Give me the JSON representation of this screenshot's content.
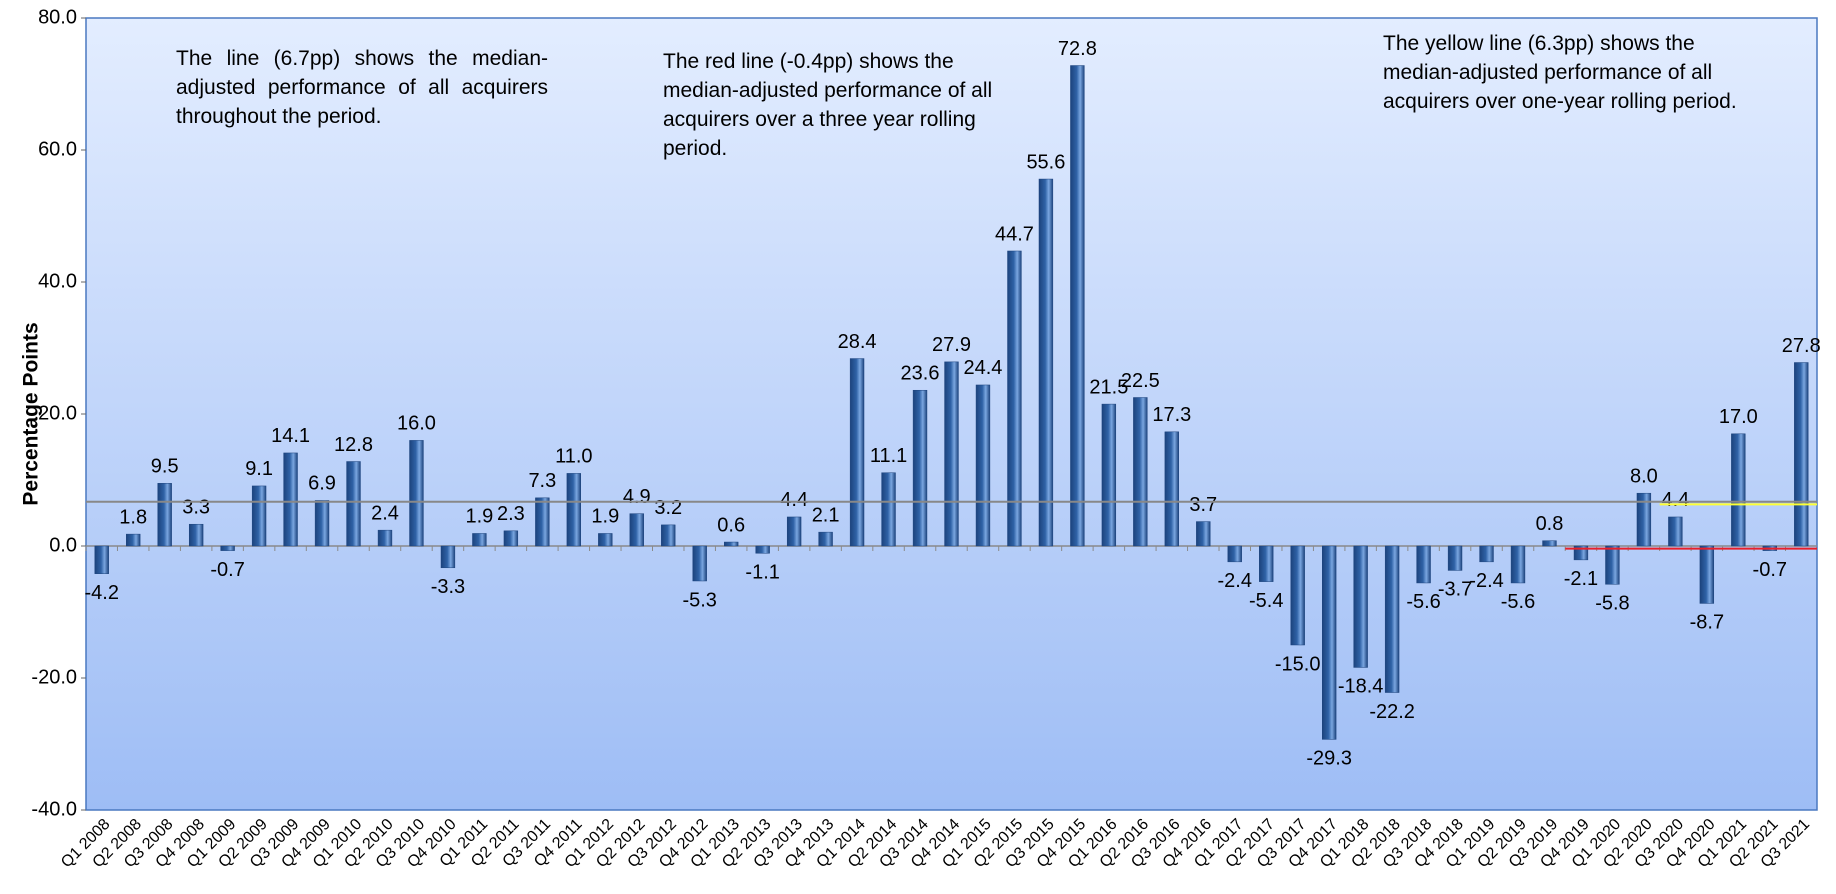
{
  "chart_data": {
    "type": "bar",
    "y_label": "Percentage Points",
    "categories": [
      "Q1 2008",
      "Q2 2008",
      "Q3 2008",
      "Q4 2008",
      "Q1 2009",
      "Q2 2009",
      "Q3 2009",
      "Q4 2009",
      "Q1 2010",
      "Q2 2010",
      "Q3 2010",
      "Q4 2010",
      "Q1 2011",
      "Q2 2011",
      "Q3 2011",
      "Q4 2011",
      "Q1 2012",
      "Q2 2012",
      "Q3 2012",
      "Q4 2012",
      "Q1 2013",
      "Q2 2013",
      "Q3 2013",
      "Q4 2013",
      "Q1 2014",
      "Q2 2014",
      "Q3 2014",
      "Q4 2014",
      "Q1 2015",
      "Q2 2015",
      "Q3 2015",
      "Q4 2015",
      "Q1 2016",
      "Q2 2016",
      "Q3 2016",
      "Q4 2016",
      "Q1 2017",
      "Q2 2017",
      "Q3 2017",
      "Q4 2017",
      "Q1 2018",
      "Q2 2018",
      "Q3 2018",
      "Q4 2018",
      "Q1 2019",
      "Q2 2019",
      "Q3 2019",
      "Q4 2019",
      "Q1 2020",
      "Q2 2020",
      "Q3 2020",
      "Q4 2020",
      "Q1 2021",
      "Q2 2021",
      "Q3 2021"
    ],
    "values": [
      -4.2,
      1.8,
      9.5,
      3.3,
      -0.7,
      9.1,
      14.1,
      6.9,
      12.8,
      2.4,
      16.0,
      -3.3,
      1.9,
      2.3,
      7.3,
      11.0,
      1.9,
      4.9,
      3.2,
      -5.3,
      0.6,
      -1.1,
      4.4,
      2.1,
      28.4,
      11.1,
      23.6,
      27.9,
      24.4,
      44.7,
      55.6,
      72.8,
      21.5,
      22.5,
      17.3,
      3.7,
      -2.4,
      -5.4,
      -15.0,
      -29.3,
      -18.4,
      -22.2,
      -5.6,
      -3.7,
      -2.4,
      -5.6,
      0.8,
      -2.1,
      -5.8,
      8.0,
      4.4,
      -8.7,
      17.0,
      -0.7,
      27.8
    ],
    "value_labels": [
      "-4.2",
      "1.8",
      "9.5",
      "3.3",
      "-0.7",
      "9.1",
      "14.1",
      "6.9",
      "12.8",
      "2.4",
      "16.0",
      "-3.3",
      "1.9",
      "2.3",
      "7.3",
      "11.0",
      "1.9",
      "4.9",
      "3.2",
      "-5.3",
      "0.6",
      "-1.1",
      "4.4",
      "2.1",
      "28.4",
      "11.1",
      "23.6",
      "27.9",
      "24.4",
      "44.7",
      "55.6",
      "72.8",
      "21.5",
      "22.5",
      "17.3",
      "3.7",
      "-2.4",
      "-5.4",
      "-15.0",
      "-29.3",
      "-18.4",
      "-22.2",
      "-5.6",
      "-3.7",
      "-2.4",
      "-5.6",
      "0.8",
      "-2.1",
      "-5.8",
      "8.0",
      "4.4",
      "-8.7",
      "17.0",
      "-0.7",
      "27.8"
    ],
    "color": "#2f62a6",
    "ylim": [
      -40,
      80
    ],
    "yticks": [
      {
        "value": -40,
        "label": "-40.0"
      },
      {
        "value": -20,
        "label": "-20.0"
      },
      {
        "value": 0,
        "label": "0.0"
      },
      {
        "value": 20,
        "label": "20.0"
      },
      {
        "value": 40,
        "label": "40.0"
      },
      {
        "value": 60,
        "label": "60.0"
      },
      {
        "value": 80,
        "label": "80.0"
      }
    ],
    "grid": false,
    "reference_lines": [
      {
        "value": 6.7,
        "color": "#888888",
        "start": "Q1 2008"
      },
      {
        "value": 6.3,
        "color": "#ffff33",
        "start": "Q3 2020"
      },
      {
        "value": -0.4,
        "color": "#e8202a",
        "start": "Q4 2019"
      }
    ],
    "annotations": [
      "The line (6.7pp) shows the median-adjusted performance of all acquirers throughout the period.",
      "The red line (-0.4pp) shows the median-adjusted performance of all acquirers over a three year rolling period.",
      "The yellow line (6.3pp) shows the median-adjusted performance of all acquirers over one-year rolling period."
    ]
  }
}
